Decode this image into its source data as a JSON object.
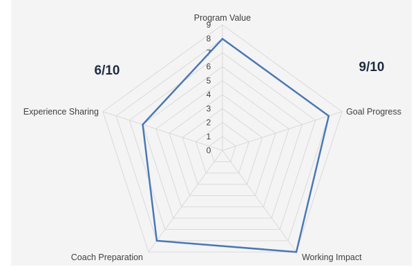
{
  "chart_data": {
    "type": "radar",
    "categories": [
      "Program Value",
      "Goal Progress",
      "Working Impact",
      "Coach Preparation",
      "Experience Sharing"
    ],
    "series": [
      {
        "values": [
          8,
          8,
          9,
          8,
          6
        ]
      }
    ],
    "rlim": [
      0,
      9
    ],
    "ticks": [
      "0",
      "1",
      "2",
      "3",
      "4",
      "5",
      "6",
      "7",
      "8",
      "9"
    ],
    "grid": true,
    "line_color": "#4a78b5",
    "grid_color": "#d9d9d9"
  },
  "annotations": {
    "left_score": "6/10",
    "right_score": "9/10"
  }
}
